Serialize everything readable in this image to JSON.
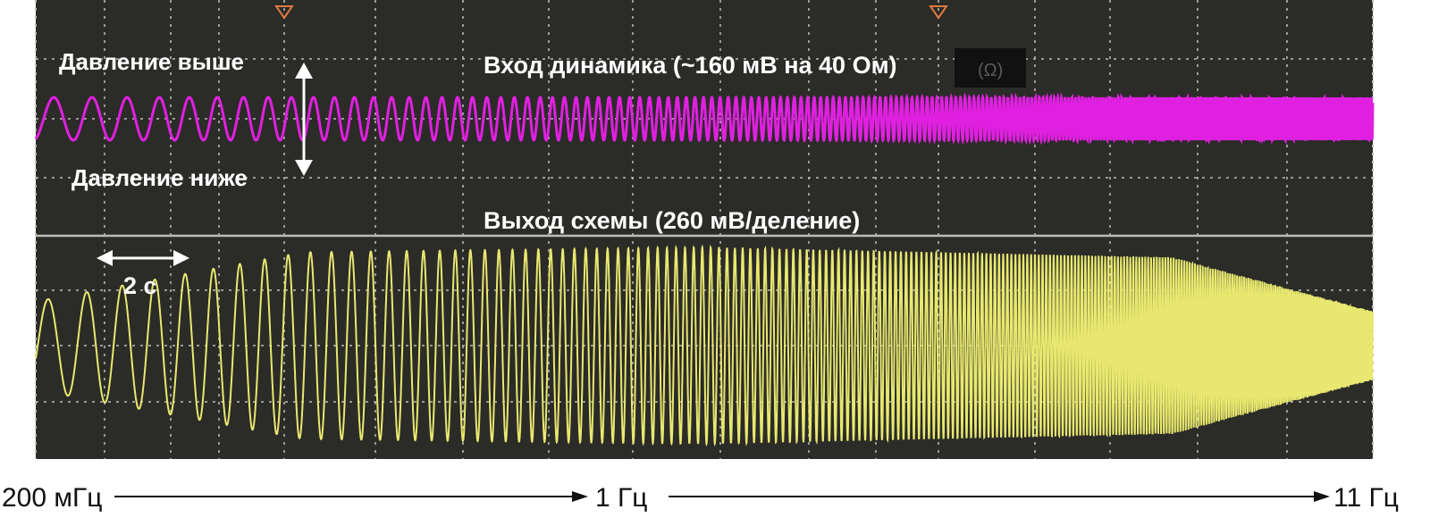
{
  "chart_data": {
    "type": "line",
    "title": "",
    "grid": true,
    "background": "#2b2b28",
    "grid_color": "#bdbdb8",
    "sweep_frequency_axis": {
      "start_label": "200 мГц",
      "mid_label": "1 Гц",
      "end_label": "11 Гц"
    },
    "channel_1": {
      "label": "Вход динамика (~160 мВ на 40 Ом)",
      "color": "#e020e0",
      "pressure_high_label": "Давление выше",
      "pressure_low_label": "Давление ниже",
      "marker_text": "(Ω)"
    },
    "channel_2": {
      "label": "Выход схемы (260 мВ/деление)",
      "color": "#e8e870",
      "time_scale_label": "2 с"
    },
    "series": [
      {
        "name": "Вход динамика (~160 мВ на 40 Ом)",
        "envelope": [
          [
            0.0,
            1.0
          ],
          [
            0.5,
            1.0
          ],
          [
            1.0,
            1.0
          ]
        ]
      },
      {
        "name": "Выход схемы (260 мВ/деление)",
        "envelope": [
          [
            0.0,
            0.45
          ],
          [
            0.2,
            0.95
          ],
          [
            0.5,
            1.0
          ],
          [
            0.85,
            0.9
          ],
          [
            1.0,
            0.35
          ]
        ]
      }
    ]
  }
}
